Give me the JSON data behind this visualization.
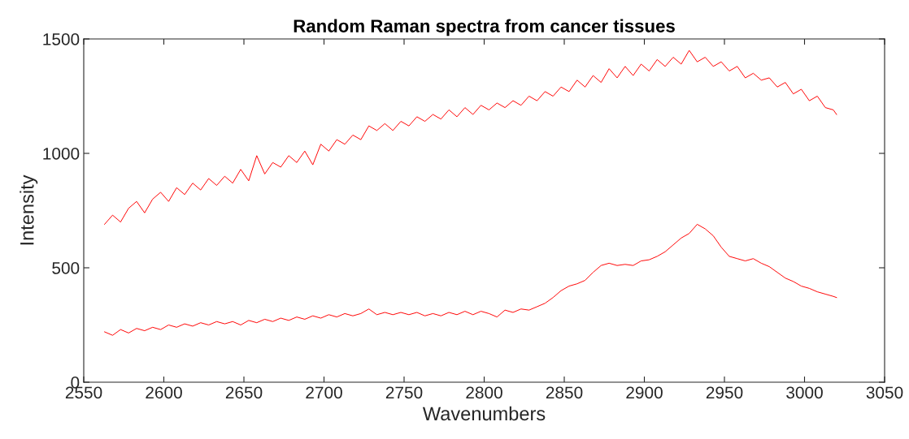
{
  "chart_data": {
    "type": "line",
    "title": "Random Raman spectra from cancer tissues",
    "xlabel": "Wavenumbers",
    "ylabel": "Intensity",
    "x": [
      2563,
      2568,
      2573,
      2578,
      2583,
      2588,
      2593,
      2598,
      2603,
      2608,
      2613,
      2618,
      2623,
      2628,
      2633,
      2638,
      2643,
      2648,
      2653,
      2658,
      2663,
      2668,
      2673,
      2678,
      2683,
      2688,
      2693,
      2698,
      2703,
      2708,
      2713,
      2718,
      2723,
      2728,
      2733,
      2738,
      2743,
      2748,
      2753,
      2758,
      2763,
      2768,
      2773,
      2778,
      2783,
      2788,
      2793,
      2798,
      2803,
      2808,
      2813,
      2818,
      2823,
      2828,
      2833,
      2838,
      2843,
      2848,
      2853,
      2858,
      2863,
      2868,
      2873,
      2878,
      2883,
      2888,
      2893,
      2898,
      2903,
      2908,
      2913,
      2918,
      2923,
      2928,
      2933,
      2938,
      2943,
      2948,
      2953,
      2958,
      2963,
      2968,
      2973,
      2978,
      2983,
      2988,
      2993,
      2998,
      3003,
      3008,
      3013,
      3018,
      3020
    ],
    "series": [
      {
        "color": "#ff0000",
        "values": [
          690,
          730,
          700,
          760,
          790,
          740,
          800,
          830,
          790,
          850,
          820,
          870,
          840,
          890,
          860,
          900,
          870,
          930,
          880,
          990,
          910,
          960,
          940,
          990,
          960,
          1010,
          950,
          1040,
          1010,
          1060,
          1040,
          1080,
          1060,
          1120,
          1100,
          1130,
          1100,
          1140,
          1120,
          1160,
          1140,
          1170,
          1150,
          1190,
          1160,
          1200,
          1170,
          1210,
          1190,
          1220,
          1200,
          1230,
          1210,
          1250,
          1230,
          1270,
          1250,
          1290,
          1270,
          1320,
          1290,
          1340,
          1310,
          1370,
          1330,
          1380,
          1340,
          1390,
          1360,
          1410,
          1380,
          1420,
          1390,
          1450,
          1400,
          1420,
          1380,
          1400,
          1360,
          1380,
          1330,
          1350,
          1320,
          1330,
          1290,
          1310,
          1260,
          1280,
          1230,
          1250,
          1200,
          1190,
          1170
        ]
      },
      {
        "color": "#ff0000",
        "values": [
          220,
          205,
          230,
          215,
          235,
          225,
          240,
          230,
          250,
          240,
          255,
          245,
          260,
          250,
          265,
          255,
          265,
          250,
          270,
          260,
          275,
          265,
          280,
          270,
          285,
          275,
          290,
          280,
          295,
          285,
          300,
          290,
          300,
          320,
          295,
          305,
          295,
          305,
          295,
          305,
          290,
          300,
          290,
          305,
          295,
          310,
          295,
          310,
          300,
          285,
          315,
          305,
          320,
          315,
          330,
          345,
          370,
          400,
          420,
          430,
          445,
          480,
          510,
          520,
          510,
          515,
          510,
          530,
          535,
          550,
          570,
          600,
          630,
          650,
          690,
          670,
          640,
          590,
          550,
          540,
          530,
          540,
          520,
          505,
          480,
          455,
          440,
          420,
          410,
          395,
          385,
          375,
          370
        ]
      }
    ],
    "xlim": [
      2550,
      3050
    ],
    "xticks": [
      2550,
      2600,
      2650,
      2700,
      2750,
      2800,
      2850,
      2900,
      2950,
      3000,
      3050
    ],
    "ylim": [
      0,
      1500
    ],
    "yticks": [
      0,
      500,
      1000,
      1500
    ],
    "grid": false,
    "marker": "none",
    "line_style": "solid"
  }
}
